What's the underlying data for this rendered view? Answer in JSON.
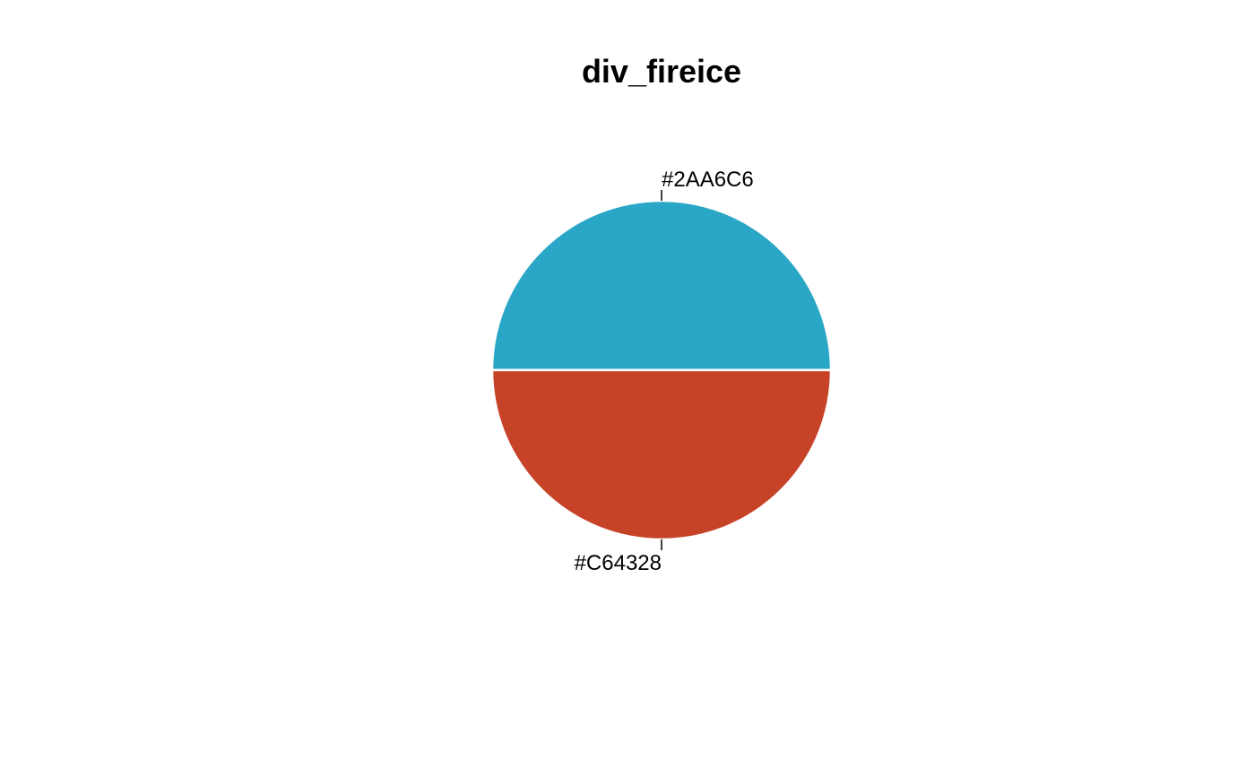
{
  "chart_data": {
    "type": "pie",
    "title": "div_fireice",
    "slices": [
      {
        "label": "#2AA6C6",
        "value": 1,
        "color": "#2AA6C6"
      },
      {
        "label": "#C64328",
        "value": 1,
        "color": "#C64328"
      }
    ],
    "start_angle_deg": 0,
    "direction": "counterclockwise",
    "legend": "none"
  }
}
